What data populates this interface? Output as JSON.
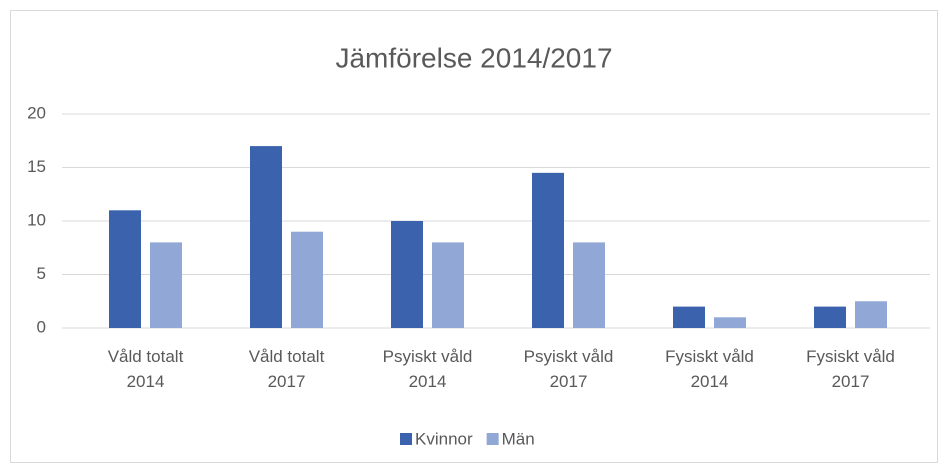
{
  "chart_data": {
    "type": "bar",
    "title": "Jämförelse 2014/2017",
    "categories": [
      "Våld totalt 2014",
      "Våld totalt 2017",
      "Psyiskt våld 2014",
      "Psyiskt våld 2017",
      "Fysiskt våld 2014",
      "Fysiskt våld 2017"
    ],
    "series": [
      {
        "name": "Kvinnor",
        "color": "#3a62ad",
        "values": [
          11,
          17,
          10,
          14.5,
          2,
          2
        ]
      },
      {
        "name": "Män",
        "color": "#91a7d6",
        "values": [
          8,
          9,
          8,
          8,
          1,
          2.5
        ]
      }
    ],
    "ylim": [
      0,
      20
    ],
    "yticks": [
      0,
      5,
      10,
      15,
      20
    ],
    "grid": true,
    "legend": "bottom"
  }
}
